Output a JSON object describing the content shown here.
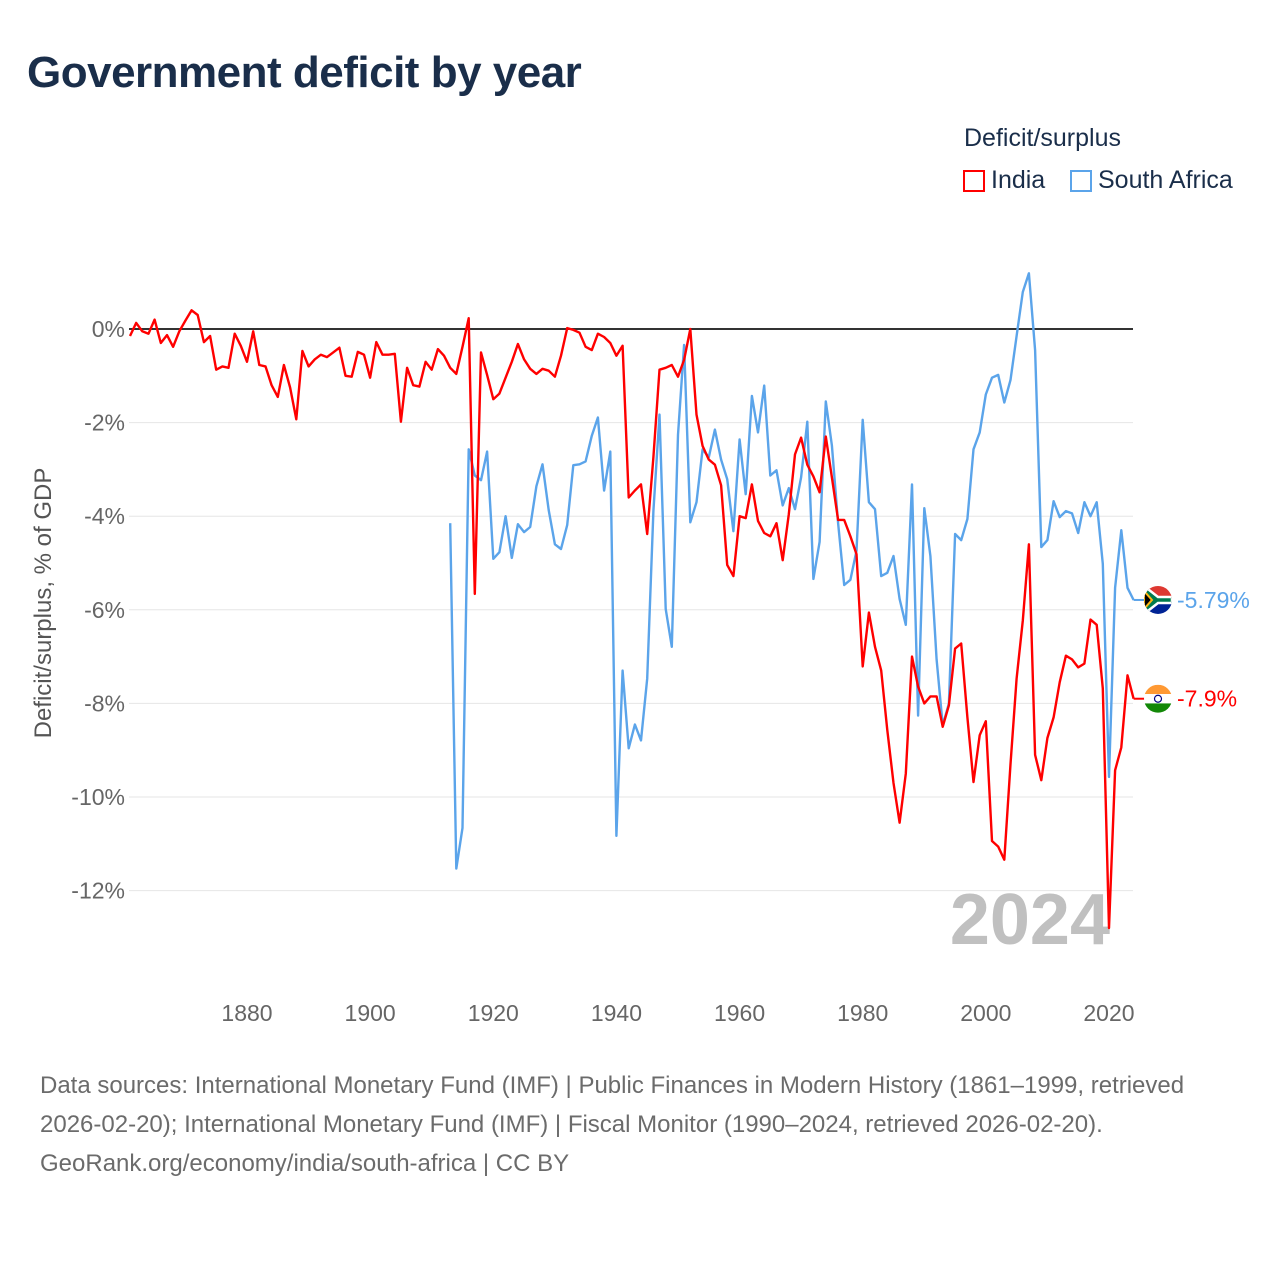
{
  "title": "Government deficit by year",
  "legend": {
    "title": "Deficit/surplus",
    "items": [
      {
        "name": "India",
        "color": "#ff0000"
      },
      {
        "name": "South Africa",
        "color": "#5ba4ea"
      }
    ]
  },
  "year_watermark": "2024",
  "footer": {
    "sources": "Data sources: International Monetary Fund (IMF) | Public Finances in Modern History (1861–1999, retrieved 2026-02-20); International Monetary Fund (IMF) | Fiscal Monitor (1990–2024, retrieved 2026-02-20).",
    "credit": "GeoRank.org/economy/india/south-africa | CC BY"
  },
  "chart_data": {
    "type": "line",
    "title": "Government deficit by year",
    "ylabel": "Deficit/surplus, % of GDP",
    "xlabel": "",
    "xlim": [
      1861,
      2024
    ],
    "ylim": [
      -13,
      1.5
    ],
    "x_ticks": [
      1880,
      1900,
      1920,
      1940,
      1960,
      1980,
      2000,
      2020
    ],
    "y_ticks": [
      0,
      -2,
      -4,
      -6,
      -8,
      -10,
      -12
    ],
    "y_tick_labels": [
      "0%",
      "-2%",
      "-4%",
      "-6%",
      "-8%",
      "-10%",
      "-12%"
    ],
    "grid": true,
    "legend_position": "top-right",
    "series": [
      {
        "name": "India",
        "color": "#ff0000",
        "start_year": 1861,
        "end_label": "-7.9%",
        "values": [
          -0.15,
          0.13,
          -0.05,
          -0.1,
          0.2,
          -0.3,
          -0.13,
          -0.38,
          -0.05,
          0.18,
          0.4,
          0.3,
          -0.28,
          -0.15,
          -0.87,
          -0.8,
          -0.83,
          -0.1,
          -0.36,
          -0.7,
          -0.05,
          -0.77,
          -0.8,
          -1.2,
          -1.45,
          -0.77,
          -1.25,
          -1.93,
          -0.47,
          -0.8,
          -0.65,
          -0.55,
          -0.6,
          -0.5,
          -0.4,
          -1.0,
          -1.02,
          -0.49,
          -0.55,
          -1.04,
          -0.28,
          -0.55,
          -0.55,
          -0.53,
          -1.98,
          -0.83,
          -1.2,
          -1.23,
          -0.7,
          -0.87,
          -0.43,
          -0.57,
          -0.83,
          -0.96,
          -0.38,
          0.23,
          -5.66,
          -0.5,
          -0.98,
          -1.5,
          -1.38,
          -1.04,
          -0.7,
          -0.32,
          -0.65,
          -0.85,
          -0.96,
          -0.85,
          -0.89,
          -1.02,
          -0.57,
          0.02,
          -0.02,
          -0.08,
          -0.38,
          -0.45,
          -0.1,
          -0.17,
          -0.3,
          -0.57,
          -0.36,
          -3.6,
          -3.45,
          -3.32,
          -4.38,
          -2.74,
          -0.87,
          -0.83,
          -0.77,
          -1.02,
          -0.66,
          0,
          -1.83,
          -2.5,
          -2.79,
          -2.9,
          -3.34,
          -5.04,
          -5.28,
          -4.0,
          -4.04,
          -3.32,
          -4.1,
          -4.36,
          -4.43,
          -4.15,
          -4.94,
          -3.96,
          -2.68,
          -2.32,
          -2.9,
          -3.15,
          -3.49,
          -2.3,
          -3.17,
          -4.08,
          -4.08,
          -4.43,
          -4.81,
          -7.21,
          -6.06,
          -6.79,
          -7.3,
          -8.57,
          -9.7,
          -10.55,
          -9.5,
          -7.0,
          -7.64,
          -8.0,
          -7.85,
          -7.85,
          -8.5,
          -8.04,
          -6.83,
          -6.72,
          -8.3,
          -9.68,
          -8.68,
          -8.38,
          -10.94,
          -11.06,
          -11.34,
          -9.3,
          -7.47,
          -6.23,
          -4.6,
          -9.1,
          -9.64,
          -8.74,
          -8.3,
          -7.55,
          -6.98,
          -7.06,
          -7.23,
          -7.15,
          -6.21,
          -6.32,
          -7.68,
          -12.8,
          -9.43,
          -8.94,
          -7.4,
          -7.9
        ]
      },
      {
        "name": "South Africa",
        "color": "#5ba4ea",
        "start_year": 1913,
        "end_label": "-5.79%",
        "values": [
          -4.15,
          -11.53,
          -10.66,
          -2.57,
          -3.13,
          -3.23,
          -2.62,
          -4.91,
          -4.77,
          -4.0,
          -4.89,
          -4.17,
          -4.34,
          -4.23,
          -3.36,
          -2.89,
          -3.87,
          -4.6,
          -4.7,
          -4.19,
          -2.91,
          -2.89,
          -2.83,
          -2.28,
          -1.89,
          -3.45,
          -2.62,
          -10.83,
          -7.3,
          -8.96,
          -8.45,
          -8.79,
          -7.47,
          -3.89,
          -1.83,
          -5.98,
          -6.79,
          -2.26,
          -0.34,
          -4.13,
          -3.7,
          -2.57,
          -2.74,
          -2.15,
          -2.79,
          -3.21,
          -4.32,
          -2.36,
          -3.53,
          -1.43,
          -2.21,
          -1.21,
          -3.13,
          -3.02,
          -3.77,
          -3.4,
          -3.85,
          -3.17,
          -1.98,
          -5.34,
          -4.55,
          -1.55,
          -2.49,
          -4.15,
          -5.47,
          -5.36,
          -4.74,
          -1.94,
          -3.7,
          -3.85,
          -5.28,
          -5.21,
          -4.85,
          -5.77,
          -6.32,
          -3.32,
          -8.26,
          -3.83,
          -4.85,
          -7.06,
          -8.47,
          -8.0,
          -4.38,
          -4.51,
          -4.06,
          -2.57,
          -2.21,
          -1.4,
          -1.04,
          -0.98,
          -1.57,
          -1.09,
          -0.15,
          0.79,
          1.19,
          -0.45,
          -4.66,
          -4.51,
          -3.68,
          -4.02,
          -3.89,
          -3.94,
          -4.36,
          -3.7,
          -4.0,
          -3.7,
          -5.02,
          -9.57,
          -5.53,
          -4.3,
          -5.53,
          -5.79
        ]
      }
    ]
  }
}
